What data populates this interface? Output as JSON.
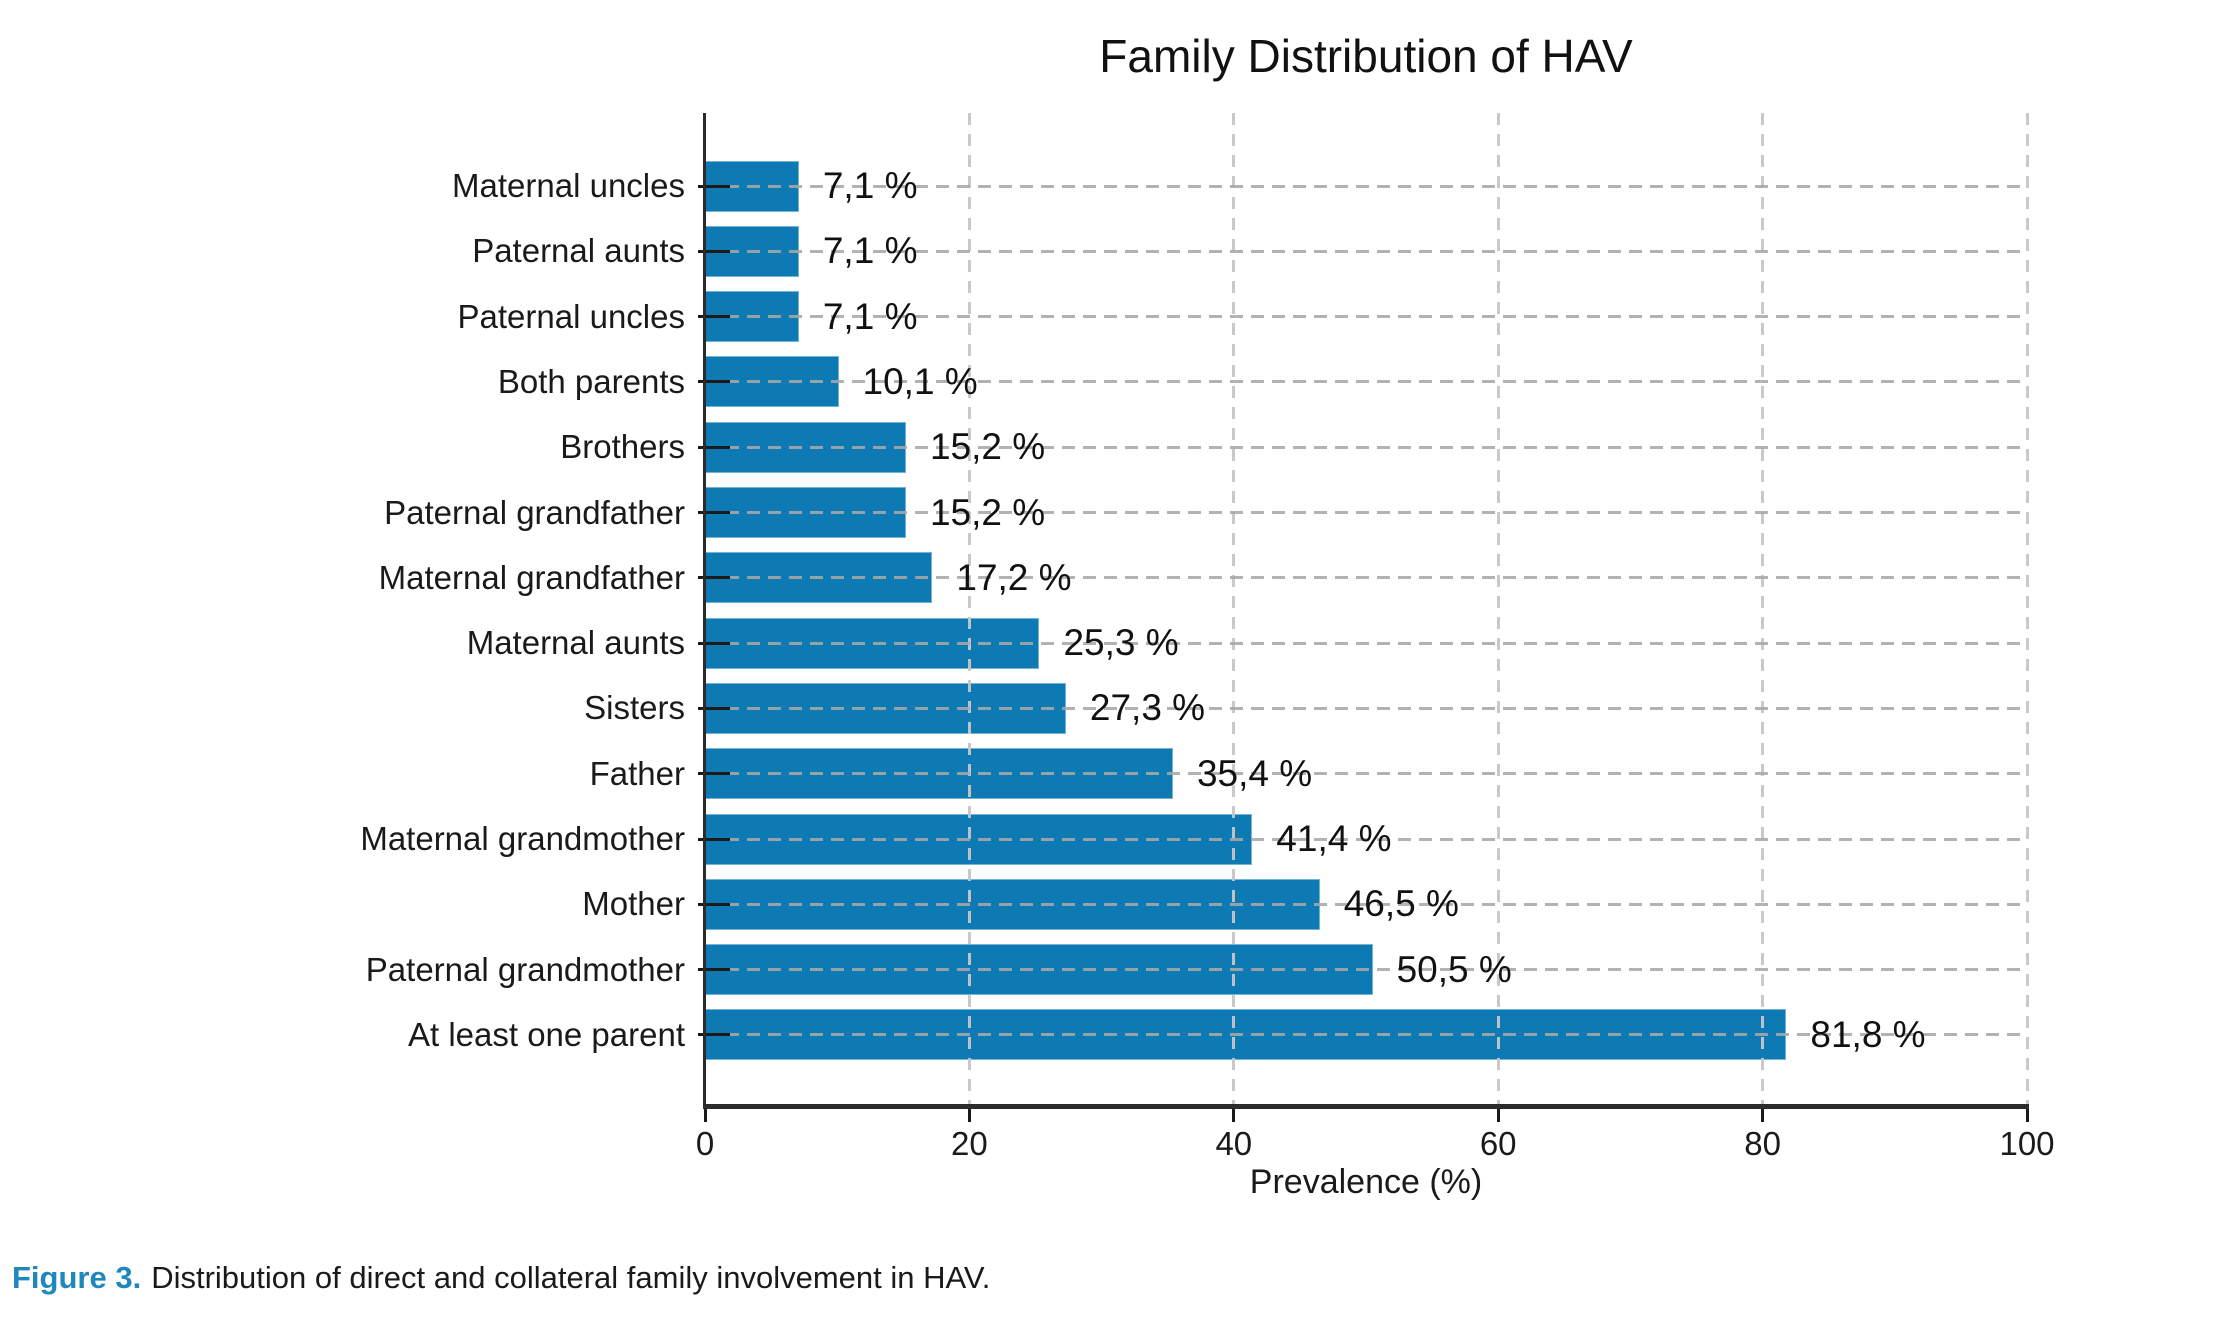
{
  "figure": {
    "title": "Family Distribution of HAV",
    "xlabel": "Prevalence (%)",
    "caption_label": "Figure 3.",
    "caption_text": "Distribution of direct and collateral family involvement in HAV."
  },
  "colors": {
    "bar": "#0e7ab4",
    "caption_accent": "#1e87be",
    "axis": "#2b2b2b",
    "text": "#1a1a1a",
    "gridline": "#bdbdbd"
  },
  "chart_data": {
    "type": "bar",
    "orientation": "horizontal",
    "title": "Family Distribution of HAV",
    "xlabel": "Prevalence (%)",
    "ylabel": "",
    "xlim": [
      0,
      100
    ],
    "xticks": [
      0,
      20,
      40,
      60,
      80,
      100
    ],
    "xtick_labels": [
      "0",
      "20",
      "40",
      "60",
      "80",
      "100"
    ],
    "grid": true,
    "legend": false,
    "categories": [
      "Maternal uncles",
      "Paternal aunts",
      "Paternal uncles",
      "Both parents",
      "Brothers",
      "Paternal grandfather",
      "Maternal grandfather",
      "Maternal aunts",
      "Sisters",
      "Father",
      "Maternal grandmother",
      "Mother",
      "Paternal grandmother",
      "At least one parent"
    ],
    "values": [
      7.1,
      7.1,
      7.1,
      10.1,
      15.2,
      15.2,
      17.2,
      25.3,
      27.3,
      35.4,
      41.4,
      46.5,
      50.5,
      81.8
    ],
    "value_labels": [
      "7,1 %",
      "7,1 %",
      "7,1 %",
      "10,1 %",
      "15,2 %",
      "15,2 %",
      "17,2 %",
      "25,3 %",
      "27,3 %",
      "35,4 %",
      "41,4 %",
      "46,5 %",
      "50,5 %",
      "81,8 %"
    ]
  }
}
